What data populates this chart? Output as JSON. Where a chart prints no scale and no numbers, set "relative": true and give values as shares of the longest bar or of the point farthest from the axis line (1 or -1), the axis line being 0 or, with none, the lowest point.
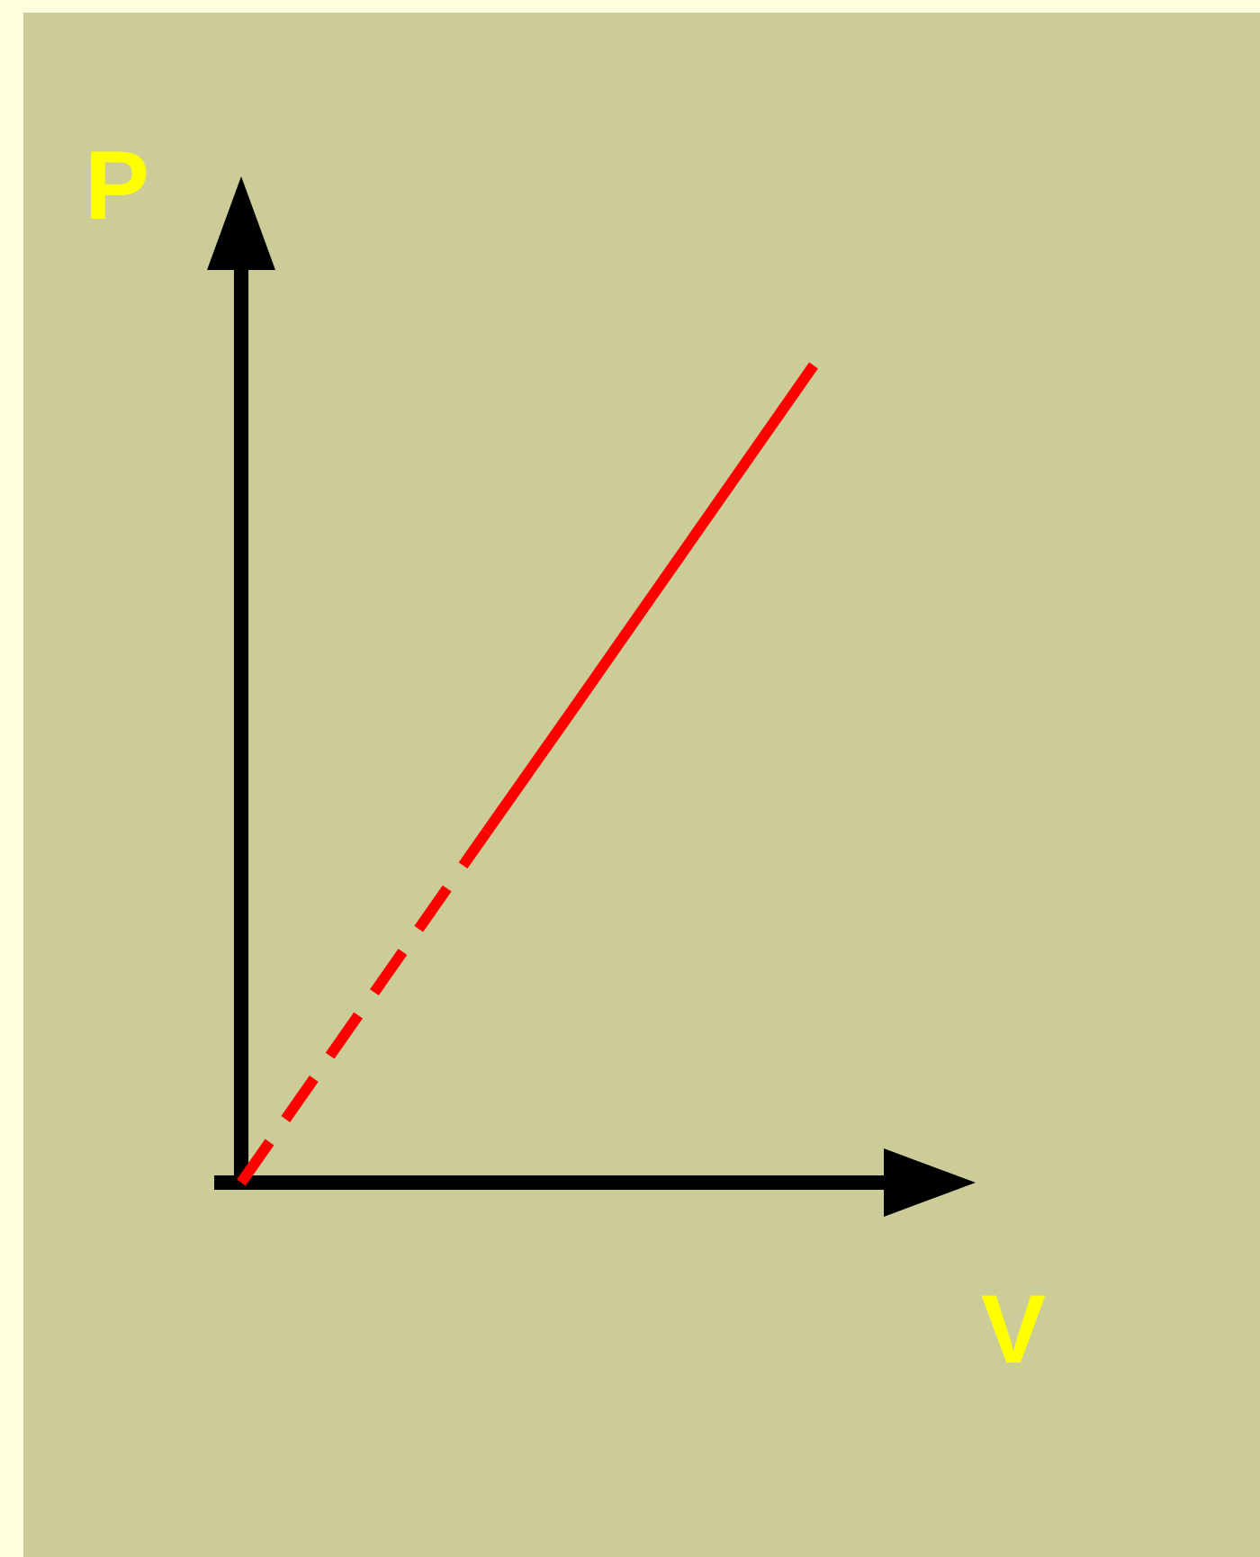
{
  "chart_data": {
    "type": "line",
    "xlabel": "V",
    "ylabel": "P",
    "relative": true,
    "categories": [
      null,
      null,
      null,
      null,
      null,
      null,
      null,
      null
    ],
    "series": [
      {
        "color": "#ff0000",
        "line_style": "dashed",
        "values": [
          0,
          0.143,
          0.286,
          0.429,
          null,
          null,
          null,
          null
        ]
      },
      {
        "color": "#ff0000",
        "line_style": "solid",
        "values": [
          null,
          null,
          null,
          0.429,
          0.571,
          0.714,
          0.857,
          1
        ]
      }
    ]
  }
}
